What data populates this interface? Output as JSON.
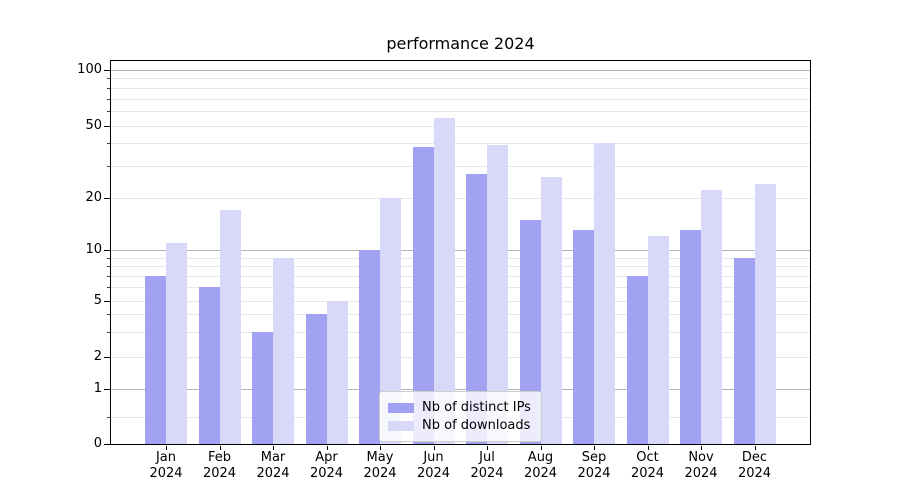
{
  "chart_data": {
    "type": "bar",
    "title": "performance 2024",
    "scale": "symlog",
    "grid": true,
    "categories": [
      "Jan",
      "Feb",
      "Mar",
      "Apr",
      "May",
      "Jun",
      "Jul",
      "Aug",
      "Sep",
      "Oct",
      "Nov",
      "Dec"
    ],
    "category_year": "2024",
    "series": [
      {
        "name": "Nb of distinct IPs",
        "color": "#a2a2f2",
        "values": [
          7,
          6,
          3,
          4,
          10,
          38,
          27,
          15,
          13,
          7,
          13,
          9
        ]
      },
      {
        "name": "Nb of downloads",
        "color": "#d8d8f9",
        "values": [
          11,
          17,
          9,
          5,
          20,
          55,
          39,
          26,
          40,
          12,
          22,
          24
        ]
      }
    ],
    "yaxis": {
      "tick_values": [
        0,
        1,
        2,
        5,
        10,
        20,
        50,
        100
      ],
      "tick_labels": [
        "0",
        "1",
        "2",
        "5",
        "10",
        "20",
        "50",
        "100"
      ],
      "major_grid_values": [
        1,
        10,
        100
      ],
      "minor_grid_values": [
        0.5,
        2,
        3,
        4,
        5,
        6,
        7,
        8,
        9,
        20,
        30,
        40,
        50,
        60,
        70,
        80,
        90
      ],
      "ylim": [
        0,
        120
      ]
    },
    "legend": {
      "entries": [
        "Nb of distinct IPs",
        "Nb of downloads"
      ]
    },
    "colors": {
      "major_grid": "#b3b3b3",
      "minor_grid": "#e7e7e7",
      "spine": "#000000",
      "legend_border": "#cccccc"
    }
  }
}
